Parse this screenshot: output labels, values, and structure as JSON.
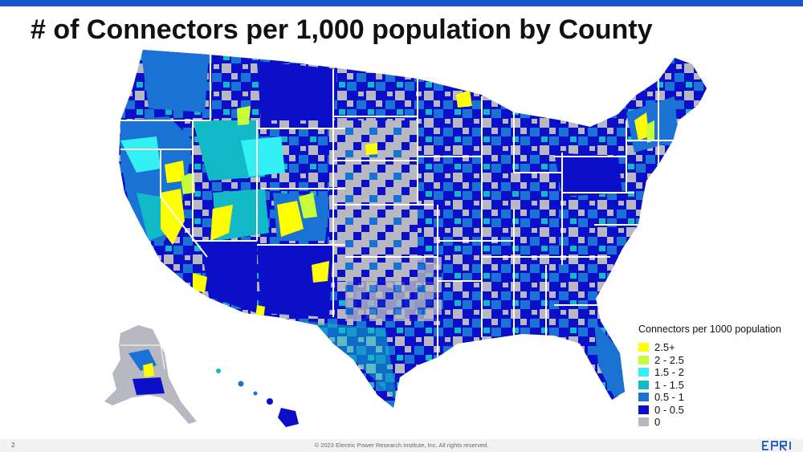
{
  "title": "# of Connectors per 1,000 population by County",
  "legend": {
    "title": "Connectors per 1000 population",
    "items": [
      {
        "label": "2.5+",
        "color": "#ffff00"
      },
      {
        "label": "2 - 2.5",
        "color": "#c6ff3a"
      },
      {
        "label": "1.5 - 2",
        "color": "#33f0f4"
      },
      {
        "label": "1 - 1.5",
        "color": "#12b9c7"
      },
      {
        "label": "0.5 - 1",
        "color": "#1a72d4"
      },
      {
        "label": "0 - 0.5",
        "color": "#0b0fc8"
      },
      {
        "label": "0",
        "color": "#b8b8c2"
      }
    ]
  },
  "footer": {
    "page_number": "2",
    "copyright": "© 2023 Electric Power Research Institute, Inc. All rights reserved.",
    "logo": "EPRI"
  },
  "colors": {
    "accent_bar": "#1756c8",
    "state_border": "#ffffff"
  }
}
